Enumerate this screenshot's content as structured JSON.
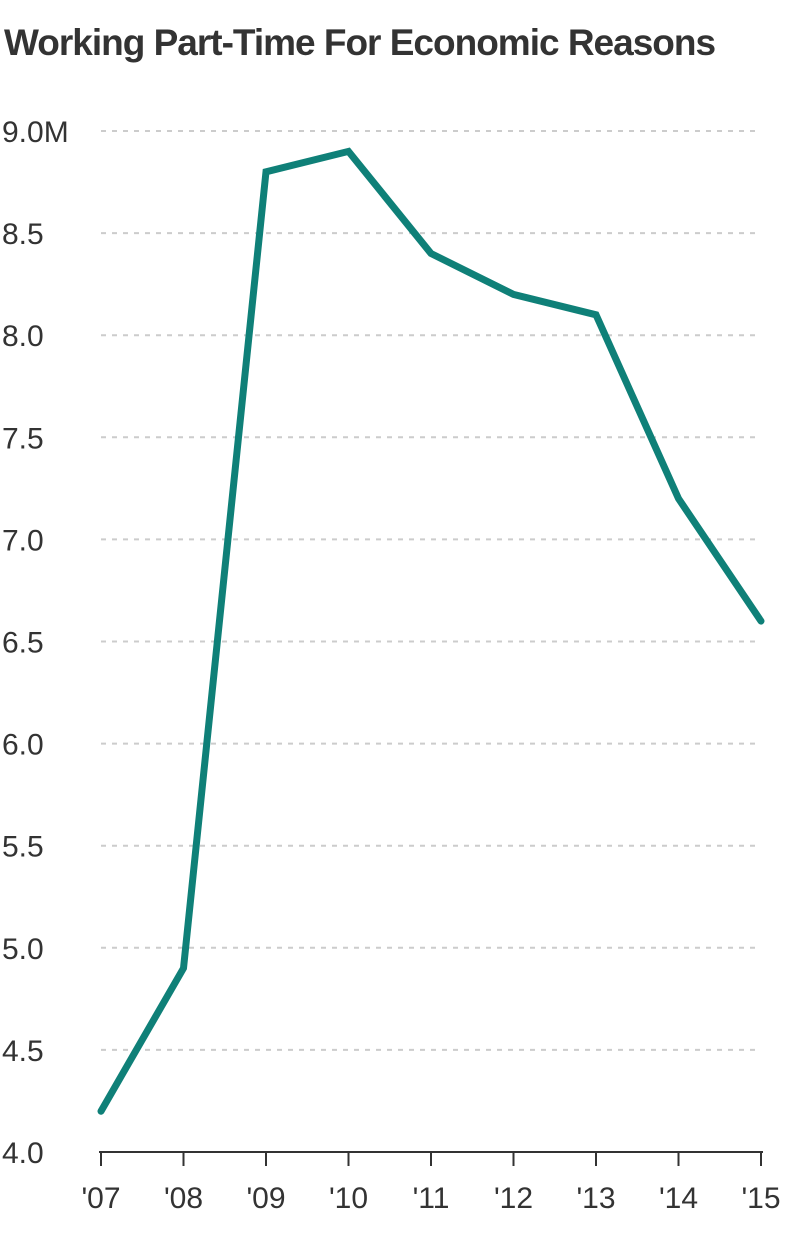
{
  "chart_data": {
    "type": "line",
    "title": "Working Part-Time For Economic Reasons",
    "xlabel": "",
    "ylabel": "",
    "categories": [
      "'07",
      "'08",
      "'09",
      "'10",
      "'11",
      "'12",
      "'13",
      "'14",
      "'15"
    ],
    "series": [
      {
        "values": [
          4.2,
          4.9,
          8.8,
          8.9,
          8.4,
          8.2,
          8.1,
          7.2,
          6.6
        ]
      }
    ],
    "y_ticks": [
      "4.0",
      "4.5",
      "5.0",
      "5.5",
      "6.0",
      "6.5",
      "7.0",
      "7.5",
      "8.0",
      "8.5",
      "9.0M"
    ],
    "ylim": [
      4.0,
      9.0
    ],
    "grid": true,
    "line_color": "#0f8078",
    "grid_color": "#cccccc",
    "text_color": "#333333"
  }
}
